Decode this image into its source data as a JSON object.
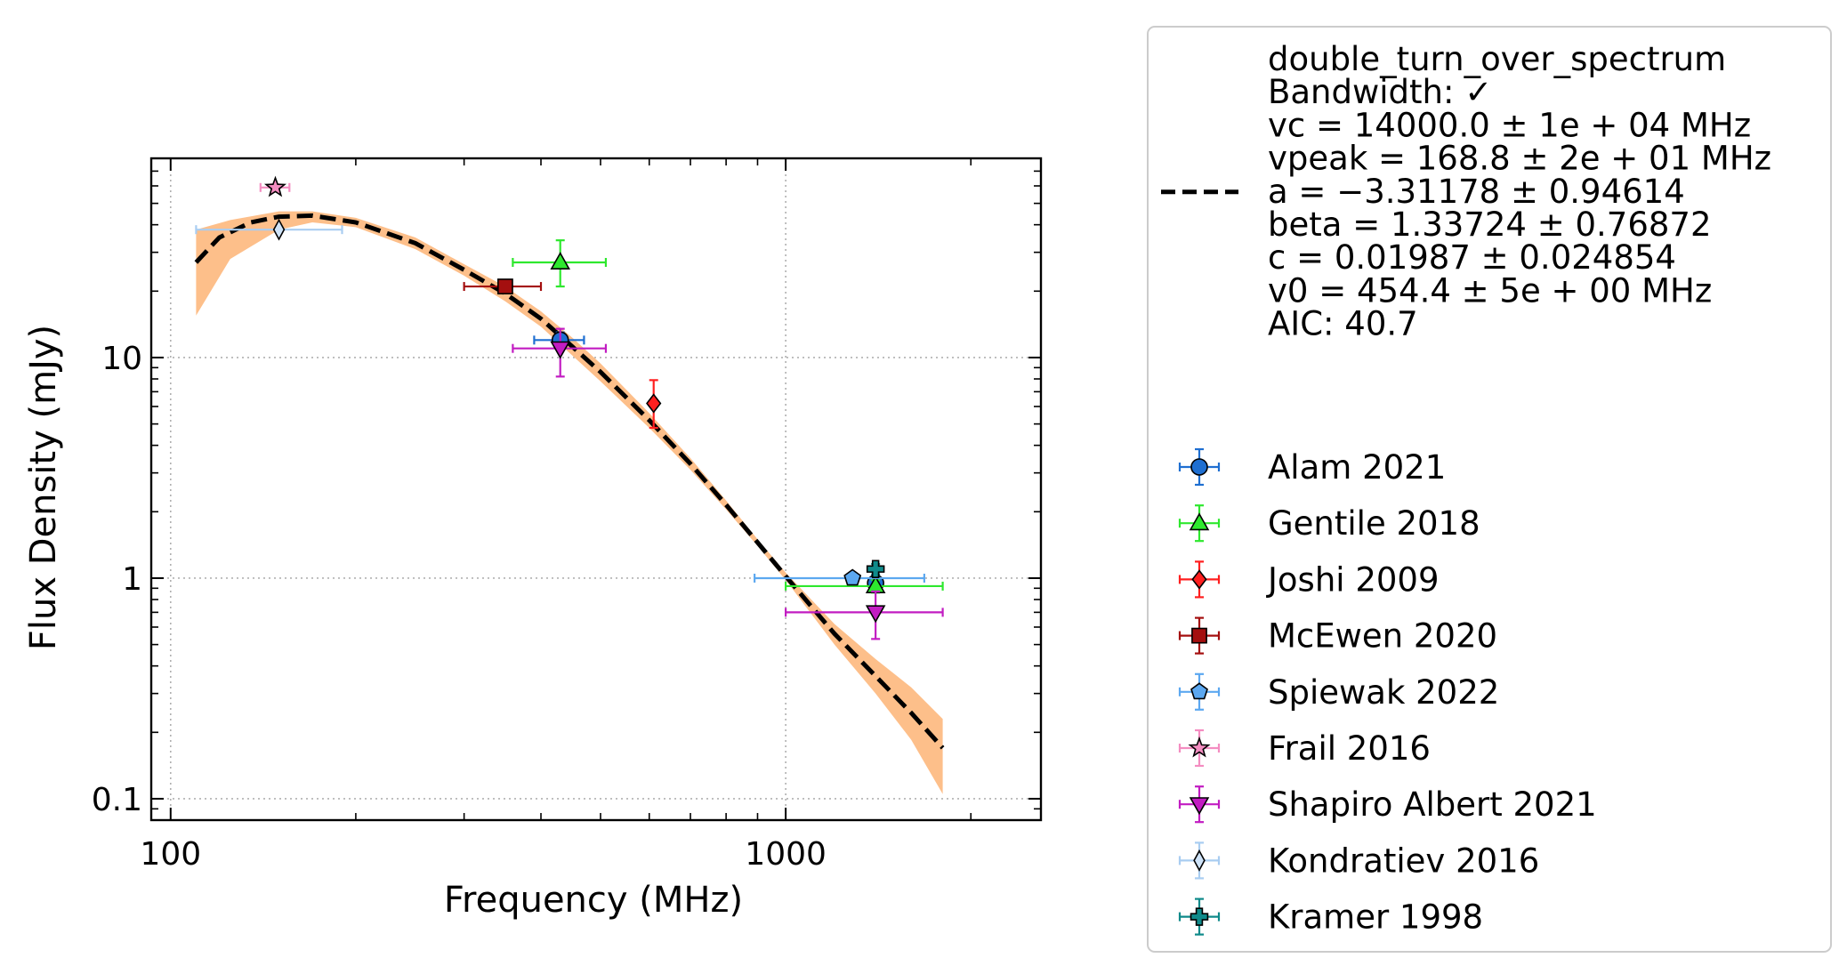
{
  "chart_data": {
    "type": "scatter",
    "xlabel": "Frequency (MHz)",
    "ylabel": "Flux Density (mJy)",
    "xscale": "log",
    "yscale": "log",
    "xlim": [
      93,
      2600
    ],
    "ylim": [
      0.08,
      80
    ],
    "xticks": [
      {
        "value": 100,
        "label": "100"
      },
      {
        "value": 1000,
        "label": "1000"
      }
    ],
    "yticks": [
      {
        "value": 0.1,
        "label": "0.1"
      },
      {
        "value": 1,
        "label": "1"
      },
      {
        "value": 10,
        "label": "10"
      }
    ],
    "grid": "dotted, major ticks only",
    "legend_position": "outside right",
    "fit": {
      "legend_lines": [
        "double_turn_over_spectrum",
        "Bandwidth: ✓",
        "vc = 14000.0 ± 1e + 04 MHz",
        "vpeak = 168.8 ± 2e + 01 MHz",
        "a = −3.31178 ± 0.94614",
        "beta = 1.33724 ± 0.76872",
        "c = 0.01987 ± 0.024854",
        "v0 = 454.4 ± 5e + 00 MHz",
        "AIC: 40.7"
      ],
      "line_color": "#000000",
      "band_color": "#fdbf8a",
      "curve": [
        {
          "x": 110,
          "y": 27
        },
        {
          "x": 120,
          "y": 35
        },
        {
          "x": 135,
          "y": 41
        },
        {
          "x": 150,
          "y": 43.5
        },
        {
          "x": 170,
          "y": 44
        },
        {
          "x": 200,
          "y": 41
        },
        {
          "x": 250,
          "y": 33
        },
        {
          "x": 300,
          "y": 25
        },
        {
          "x": 350,
          "y": 19.5
        },
        {
          "x": 400,
          "y": 15
        },
        {
          "x": 450,
          "y": 11.2
        },
        {
          "x": 500,
          "y": 8.6
        },
        {
          "x": 600,
          "y": 5.2
        },
        {
          "x": 700,
          "y": 3.3
        },
        {
          "x": 800,
          "y": 2.15
        },
        {
          "x": 900,
          "y": 1.45
        },
        {
          "x": 1000,
          "y": 1.02
        },
        {
          "x": 1200,
          "y": 0.56
        },
        {
          "x": 1400,
          "y": 0.36
        },
        {
          "x": 1600,
          "y": 0.245
        },
        {
          "x": 1800,
          "y": 0.17
        }
      ],
      "band_upper": [
        {
          "x": 110,
          "y": 38
        },
        {
          "x": 125,
          "y": 42
        },
        {
          "x": 150,
          "y": 46
        },
        {
          "x": 170,
          "y": 46
        },
        {
          "x": 200,
          "y": 43
        },
        {
          "x": 250,
          "y": 35
        },
        {
          "x": 300,
          "y": 26.5
        },
        {
          "x": 350,
          "y": 21
        },
        {
          "x": 400,
          "y": 16.2
        },
        {
          "x": 450,
          "y": 12.3
        },
        {
          "x": 500,
          "y": 9.4
        },
        {
          "x": 600,
          "y": 5.6
        },
        {
          "x": 700,
          "y": 3.5
        },
        {
          "x": 800,
          "y": 2.25
        },
        {
          "x": 900,
          "y": 1.5
        },
        {
          "x": 1000,
          "y": 1.06
        },
        {
          "x": 1200,
          "y": 0.62
        },
        {
          "x": 1400,
          "y": 0.43
        },
        {
          "x": 1600,
          "y": 0.32
        },
        {
          "x": 1800,
          "y": 0.23
        }
      ],
      "band_lower": [
        {
          "x": 110,
          "y": 15.5
        },
        {
          "x": 125,
          "y": 28
        },
        {
          "x": 150,
          "y": 38
        },
        {
          "x": 170,
          "y": 41
        },
        {
          "x": 200,
          "y": 39
        },
        {
          "x": 250,
          "y": 31
        },
        {
          "x": 300,
          "y": 23.5
        },
        {
          "x": 350,
          "y": 18
        },
        {
          "x": 400,
          "y": 13.8
        },
        {
          "x": 450,
          "y": 10.2
        },
        {
          "x": 500,
          "y": 7.8
        },
        {
          "x": 600,
          "y": 4.8
        },
        {
          "x": 700,
          "y": 3.1
        },
        {
          "x": 800,
          "y": 2.05
        },
        {
          "x": 900,
          "y": 1.4
        },
        {
          "x": 1000,
          "y": 0.98
        },
        {
          "x": 1200,
          "y": 0.5
        },
        {
          "x": 1400,
          "y": 0.3
        },
        {
          "x": 1600,
          "y": 0.185
        },
        {
          "x": 1800,
          "y": 0.105
        }
      ]
    },
    "series": [
      {
        "name": "Alam 2021",
        "marker": "circle",
        "color": "#1f6fd1",
        "line_color": "#1f6fd1",
        "points": [
          {
            "x": 430,
            "y": 12,
            "xlo": 390,
            "xhi": 470,
            "ylo": 11,
            "yhi": 13
          },
          {
            "x": 1400,
            "y": 0.95,
            "xlo": 1400,
            "xhi": 1400,
            "ylo": 0.87,
            "yhi": 1.03
          }
        ]
      },
      {
        "name": "Gentile 2018",
        "marker": "triangle-up",
        "color": "#2ee82e",
        "line_color": "#2ee82e",
        "points": [
          {
            "x": 430,
            "y": 27,
            "xlo": 360,
            "xhi": 510,
            "ylo": 21,
            "yhi": 34
          },
          {
            "x": 1400,
            "y": 0.92,
            "xlo": 1000,
            "xhi": 1800,
            "ylo": 0.86,
            "yhi": 0.98
          }
        ]
      },
      {
        "name": "Joshi 2009",
        "marker": "diamond",
        "color": "#ff1f1f",
        "line_color": "#ff1f1f",
        "points": [
          {
            "x": 610,
            "y": 6.2,
            "xlo": 610,
            "xhi": 610,
            "ylo": 4.8,
            "yhi": 7.9
          }
        ]
      },
      {
        "name": "McEwen 2020",
        "marker": "square",
        "color": "#a40f0f",
        "line_color": "#a40f0f",
        "points": [
          {
            "x": 350,
            "y": 21,
            "xlo": 300,
            "xhi": 400,
            "ylo": 20,
            "yhi": 22
          }
        ]
      },
      {
        "name": "Spiewak 2022",
        "marker": "pentagon",
        "color": "#5ca8f0",
        "line_color": "#5ca8f0",
        "points": [
          {
            "x": 1284,
            "y": 1.0,
            "xlo": 890,
            "xhi": 1680,
            "ylo": 0.96,
            "yhi": 1.04
          }
        ]
      },
      {
        "name": "Frail 2016",
        "marker": "star",
        "color": "#f48dc1",
        "line_color": "#f48dc1",
        "points": [
          {
            "x": 148,
            "y": 59,
            "xlo": 140,
            "xhi": 156,
            "ylo": 57,
            "yhi": 61
          }
        ]
      },
      {
        "name": "Shapiro Albert 2021",
        "marker": "triangle-down",
        "color": "#c21cc2",
        "line_color": "#c21cc2",
        "points": [
          {
            "x": 430,
            "y": 11,
            "xlo": 360,
            "xhi": 510,
            "ylo": 8.2,
            "yhi": 13.5
          },
          {
            "x": 1400,
            "y": 0.7,
            "xlo": 1000,
            "xhi": 1800,
            "ylo": 0.53,
            "yhi": 0.87
          }
        ]
      },
      {
        "name": "Kondratiev 2016",
        "marker": "thin-diamond",
        "color": "#cfe3f8",
        "line_color": "#a9cdf1",
        "points": [
          {
            "x": 150,
            "y": 38,
            "xlo": 110,
            "xhi": 190,
            "ylo": 37,
            "yhi": 39
          }
        ]
      },
      {
        "name": "Kramer 1998",
        "marker": "plus",
        "color": "#0f8a8a",
        "line_color": "#0f8a8a",
        "points": [
          {
            "x": 1400,
            "y": 1.1,
            "xlo": 1400,
            "xhi": 1400,
            "ylo": 1.04,
            "yhi": 1.16
          }
        ]
      }
    ]
  }
}
